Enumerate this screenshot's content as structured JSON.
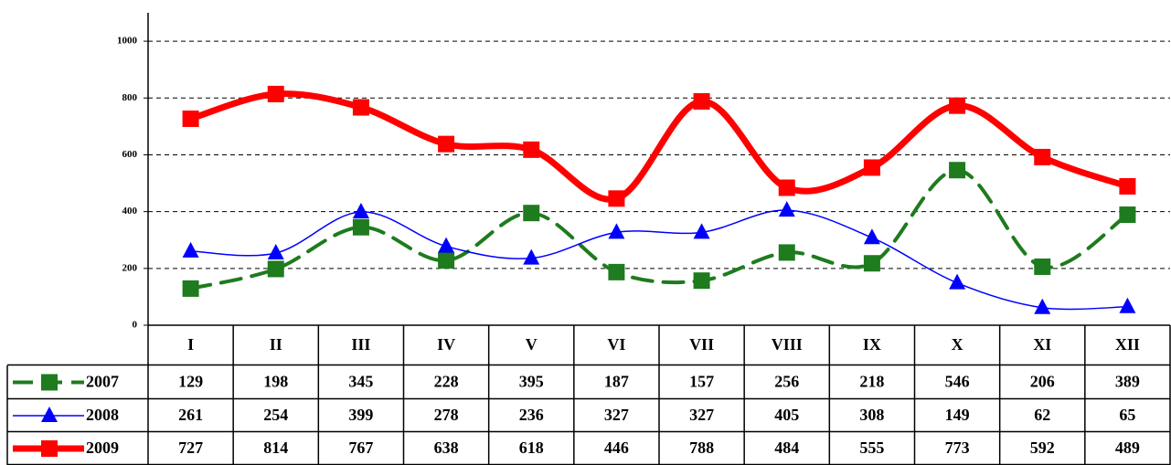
{
  "chart_data": {
    "type": "line",
    "categories": [
      "I",
      "II",
      "III",
      "IV",
      "V",
      "VI",
      "VII",
      "VIII",
      "IX",
      "X",
      "XI",
      "XII"
    ],
    "series": [
      {
        "name": "2007",
        "color": "#1e7b1e",
        "marker": "square",
        "dash": true,
        "width": 4,
        "values": [
          129,
          198,
          345,
          228,
          395,
          187,
          157,
          256,
          218,
          546,
          206,
          389
        ]
      },
      {
        "name": "2008",
        "color": "#0000ff",
        "marker": "triangle",
        "dash": false,
        "width": 1.5,
        "values": [
          261,
          254,
          399,
          278,
          236,
          327,
          327,
          405,
          308,
          149,
          62,
          65
        ]
      },
      {
        "name": "2009",
        "color": "#ff0000",
        "marker": "square",
        "dash": false,
        "width": 7,
        "values": [
          727,
          814,
          767,
          638,
          618,
          446,
          788,
          484,
          555,
          773,
          592,
          489
        ]
      }
    ],
    "ylim": [
      0,
      1100
    ],
    "yticks": [
      0,
      200,
      400,
      600,
      800,
      1000
    ],
    "grid": true
  }
}
